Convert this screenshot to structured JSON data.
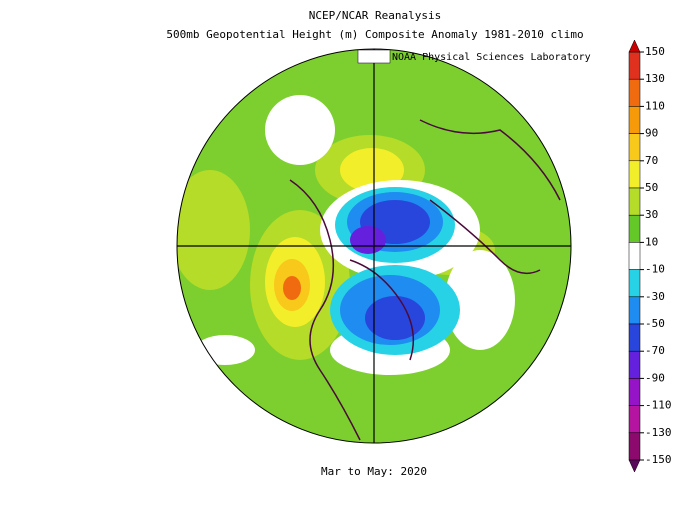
{
  "header": {
    "title": "NCEP/NCAR Reanalysis",
    "subtitle": "500mb Geopotential Height (m) Composite Anomaly 1981-2010 climo",
    "credit": "NOAA Physical Sciences Laboratory",
    "period": "Mar to May: 2020"
  },
  "colorbar": {
    "levels": [
      150,
      130,
      110,
      90,
      70,
      50,
      30,
      10,
      -10,
      -30,
      -50,
      -70,
      -90,
      -110,
      -130,
      -150
    ],
    "colors": [
      "#e0301e",
      "#f06a10",
      "#f79a0a",
      "#f8c81a",
      "#f2ee2a",
      "#b4dc28",
      "#64c828",
      "#ffffff",
      "#28d2e6",
      "#1e8cf0",
      "#2846dc",
      "#6420dc",
      "#9614c8",
      "#b414a0",
      "#8c0a6e"
    ],
    "over_color": "#c80000",
    "under_color": "#5a0a5a"
  }
}
